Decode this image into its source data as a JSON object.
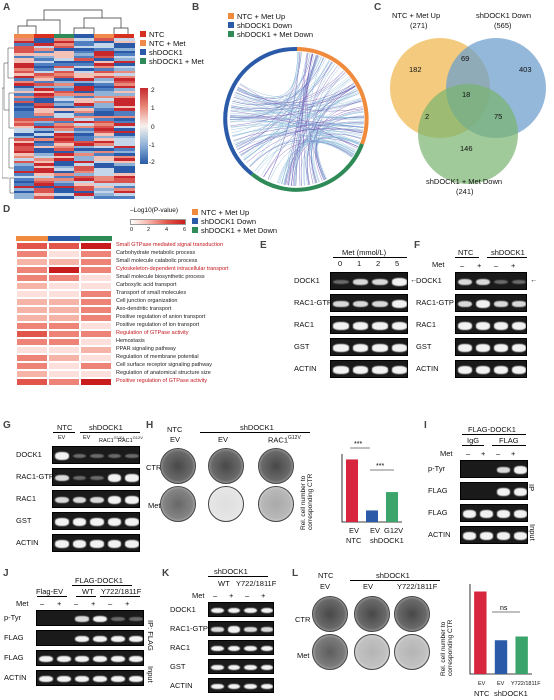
{
  "panels": {
    "A": {
      "letter": "A",
      "legend": [
        "NTC",
        "NTC + Met",
        "shDOCK1",
        "shDOCK1 + Met"
      ],
      "legend_colors": [
        "#d7301f",
        "#f08a4b",
        "#2a5aa8",
        "#2e8b57"
      ],
      "scale_ticks": [
        "2",
        "1",
        "0",
        "-1",
        "-2"
      ]
    },
    "B": {
      "letter": "B",
      "legend": [
        "NTC + Met Up",
        "shDOCK1 Down",
        "shDOCK1 + Met Down"
      ],
      "legend_colors": [
        "#f08a3c",
        "#2a5aa8",
        "#2e8b57"
      ]
    },
    "C": {
      "letter": "C",
      "set1_label": "NTC + Met Up",
      "set1_count": "(271)",
      "set2_label": "shDOCK1 Down",
      "set2_count": "(565)",
      "set3_label": "shDOCK1 + Met Down",
      "set3_count": "(241)",
      "regions": {
        "a_only": "182",
        "ab": "69",
        "b_only": "403",
        "abc": "18",
        "ac": "2",
        "bc": "75",
        "c_only": "146"
      }
    },
    "D": {
      "letter": "D",
      "scale_title": "–Log10(P-value)",
      "scale_ticks": [
        "0",
        "2",
        "4",
        "6"
      ],
      "legend": [
        "NTC + Met Up",
        "shDOCK1 Down",
        "shDOCK1 + Met Down"
      ],
      "terms": [
        {
          "name": "Small GTPase mediated signal transduction",
          "red": true
        },
        {
          "name": "Carbohydrate metabolic process",
          "red": false
        },
        {
          "name": "Small molecule catabolic process",
          "red": false
        },
        {
          "name": "Cytoskeleton-dependent intracellular transport",
          "red": true
        },
        {
          "name": "Small molecule biosynthetic process",
          "red": false
        },
        {
          "name": "Carboxylic acid transport",
          "red": false
        },
        {
          "name": "Transport of small molecules",
          "red": false
        },
        {
          "name": "Cell junction organization",
          "red": false
        },
        {
          "name": "Axo-dendritic transport",
          "red": false
        },
        {
          "name": "Positive regulation of anion transport",
          "red": false
        },
        {
          "name": "Positive regulation of ion transport",
          "red": false
        },
        {
          "name": "Regulation of GTPase activity",
          "red": true
        },
        {
          "name": "Hemostasis",
          "red": false
        },
        {
          "name": "PPAR signaling pathway",
          "red": false
        },
        {
          "name": "Regulation of membrane potential",
          "red": false
        },
        {
          "name": "Cell surface receptor signaling pathway",
          "red": false
        },
        {
          "name": "Regulation of anatomical structure size",
          "red": false
        },
        {
          "name": "Positive regulation of GTPase activity",
          "red": true
        }
      ]
    },
    "E": {
      "letter": "E",
      "header": "Met (mmol/L)",
      "doses": [
        "0",
        "1",
        "2",
        "5"
      ],
      "rows": [
        "DOCK1",
        "RAC1-GTP",
        "RAC1",
        "GST",
        "ACTIN"
      ],
      "arrow": "←"
    },
    "F": {
      "letter": "F",
      "groups": [
        "NTC",
        "shDOCK1"
      ],
      "met_label": "Met",
      "signs": [
        "–",
        "+",
        "–",
        "+"
      ],
      "rows": [
        "DOCK1",
        "RAC1-GTP",
        "RAC1",
        "GST",
        "ACTIN"
      ],
      "arrow": "←"
    },
    "G": {
      "letter": "G",
      "groups": [
        "NTC",
        "shDOCK1"
      ],
      "lanes": [
        "EV",
        "EV",
        "RAC1",
        "RAC1"
      ],
      "sup": "G12V",
      "rows": [
        "DOCK1",
        "RAC1-GTP",
        "RAC1",
        "GST",
        "ACTIN"
      ]
    },
    "H": {
      "letter": "H",
      "group_label": "shDOCK1",
      "col_labels": [
        "NTC",
        "EV",
        "EV",
        "RAC1"
      ],
      "sup": "G12V",
      "row_labels": [
        "CTR",
        "Met"
      ],
      "ylabel": "Rel. cell number to corresponding CTR",
      "sig": [
        "***",
        "***"
      ],
      "xtick_groups": [
        "EV",
        "EV",
        "G12V"
      ],
      "xgroup_labels": [
        "NTC",
        "shDOCK1"
      ]
    },
    "I": {
      "letter": "I",
      "header": "FLAG-DOCK1",
      "groups": [
        "IgG",
        "FLAG"
      ],
      "met_label": "Met",
      "signs": [
        "–",
        "+",
        "–",
        "+"
      ],
      "rows": [
        "p-Tyr",
        "FLAG",
        "FLAG",
        "ACTIN"
      ],
      "side": [
        "IP",
        "Input"
      ]
    },
    "J": {
      "letter": "J",
      "header": "FLAG-DOCK1",
      "groups": [
        "Flag-EV",
        "WT",
        "Y722/1811F"
      ],
      "met_label": "Met",
      "signs": [
        "–",
        "+",
        "–",
        "+",
        "–",
        "+"
      ],
      "rows": [
        "p-Tyr",
        "FLAG",
        "FLAG",
        "ACTIN"
      ],
      "side": [
        "IP: FLAG",
        "Input"
      ]
    },
    "K": {
      "letter": "K",
      "header": "shDOCK1",
      "groups": [
        "WT",
        "Y722/1811F"
      ],
      "met_label": "Met",
      "signs": [
        "–",
        "+",
        "–",
        "+"
      ],
      "rows": [
        "DOCK1",
        "RAC1-GTP",
        "RAC1",
        "GST",
        "ACTIN"
      ]
    },
    "L": {
      "letter": "L",
      "group_label": "shDOCK1",
      "col_labels": [
        "NTC",
        "EV",
        "EV",
        "Y722/1811F"
      ],
      "row_labels": [
        "CTR",
        "Met"
      ],
      "ylabel": "Rel. cell number to corresponding CTR",
      "sig": [
        "ns"
      ],
      "xticks": [
        "EV",
        "EV",
        "Y722/1811F"
      ],
      "xgroup_labels": [
        "NTC",
        "shDOCK1"
      ]
    }
  },
  "chart_data": [
    {
      "type": "bar",
      "panel": "H",
      "categories": [
        "EV (NTC)",
        "EV (shDOCK1)",
        "G12V (shDOCK1)"
      ],
      "values": [
        0.92,
        0.17,
        0.44
      ],
      "colors": [
        "#d7263d",
        "#2a5aa8",
        "#3aa46a"
      ],
      "ylabel": "Rel. cell number to corresponding CTR",
      "ylim": [
        0,
        1
      ]
    },
    {
      "type": "bar",
      "panel": "L",
      "categories": [
        "EV (NTC)",
        "EV (shDOCK1)",
        "Y722/1811F (shDOCK1)"
      ],
      "values": [
        1.1,
        0.45,
        0.5
      ],
      "colors": [
        "#d7263d",
        "#2a5aa8",
        "#3aa46a"
      ],
      "ylabel": "Rel. cell number to corresponding CTR",
      "ylim": [
        0,
        1.2
      ]
    }
  ]
}
